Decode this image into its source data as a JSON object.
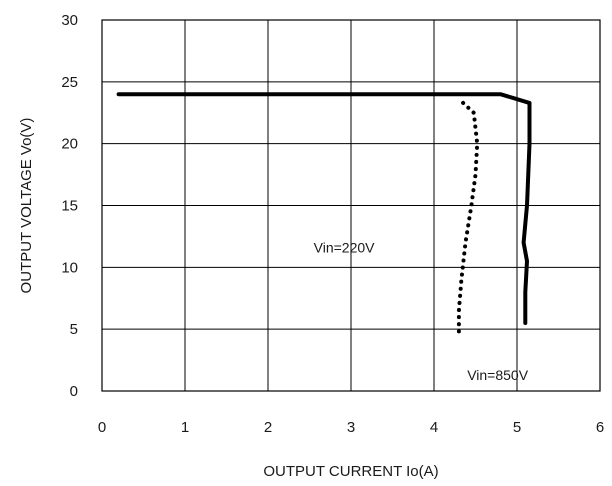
{
  "chart_data": {
    "type": "line",
    "title": "",
    "xlabel": "OUTPUT CURRENT Io(A)",
    "ylabel": "OUTPUT VOLTAGE Vo(V)",
    "xlim": [
      0,
      6
    ],
    "ylim": [
      0,
      30
    ],
    "x_ticks": [
      "0",
      "1",
      "2",
      "3",
      "4",
      "5",
      "6"
    ],
    "y_ticks": [
      "0",
      "5",
      "10",
      "15",
      "20",
      "25",
      "30"
    ],
    "grid": true,
    "legend": "none",
    "series": [
      {
        "name": "Vin=850V",
        "style": "solid",
        "color": "#000000",
        "points": [
          [
            0.2,
            24.0
          ],
          [
            4.8,
            24.0
          ],
          [
            5.15,
            23.3
          ],
          [
            5.15,
            20.0
          ],
          [
            5.12,
            15.0
          ],
          [
            5.08,
            12.0
          ],
          [
            5.12,
            10.5
          ],
          [
            5.1,
            8.0
          ],
          [
            5.1,
            5.5
          ]
        ]
      },
      {
        "name": "Vin=220V",
        "style": "dotted",
        "color": "#000000",
        "points": [
          [
            4.35,
            23.3
          ],
          [
            4.48,
            22.5
          ],
          [
            4.52,
            20.0
          ],
          [
            4.5,
            17.5
          ],
          [
            4.45,
            15.0
          ],
          [
            4.38,
            12.0
          ],
          [
            4.33,
            9.0
          ],
          [
            4.3,
            6.5
          ],
          [
            4.3,
            4.8
          ]
        ]
      }
    ],
    "annotations": [
      {
        "text": "Vin=220V",
        "series": "Vin=220V"
      },
      {
        "text": "Vin=850V",
        "series": "Vin=850V"
      }
    ]
  }
}
